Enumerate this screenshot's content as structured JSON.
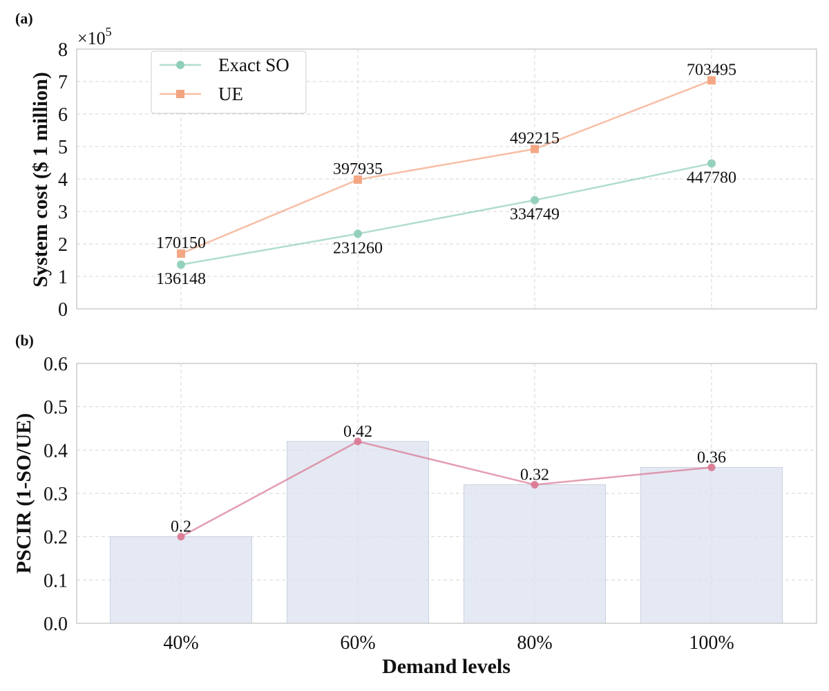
{
  "chart_data": [
    {
      "panel": "(a)",
      "type": "line",
      "categories": [
        "40%",
        "60%",
        "80%",
        "100%"
      ],
      "series": [
        {
          "name": "Exact SO",
          "values": [
            136148,
            231260,
            334749,
            447780
          ],
          "color": "#8fcfb8",
          "marker": "circle"
        },
        {
          "name": "UE",
          "values": [
            170150,
            397935,
            492215,
            703495
          ],
          "color": "#f3a37f",
          "marker": "square"
        }
      ],
      "ylabel": "System cost ($ 1 million)",
      "ylim": [
        0,
        800000
      ],
      "ytick_labels": [
        "0",
        "1",
        "2",
        "3",
        "4",
        "5",
        "6",
        "7",
        "8"
      ],
      "scale_label_base": "×10",
      "scale_label_exp": "5",
      "legend": "top-left",
      "grid": true
    },
    {
      "panel": "(b)",
      "type": "bar",
      "categories": [
        "40%",
        "60%",
        "80%",
        "100%"
      ],
      "values": [
        0.2,
        0.42,
        0.32,
        0.36
      ],
      "value_labels": [
        "0.2",
        "0.42",
        "0.32",
        "0.36"
      ],
      "line_overlay": true,
      "bar_color": "#dce2ef",
      "line_color": "#d97590",
      "ylabel": "PSCIR (1-SO/UE)",
      "xlabel": "Demand levels",
      "ylim": [
        0,
        0.6
      ],
      "ytick_labels": [
        "0.0",
        "0.1",
        "0.2",
        "0.3",
        "0.4",
        "0.5",
        "0.6"
      ],
      "grid": true
    }
  ]
}
